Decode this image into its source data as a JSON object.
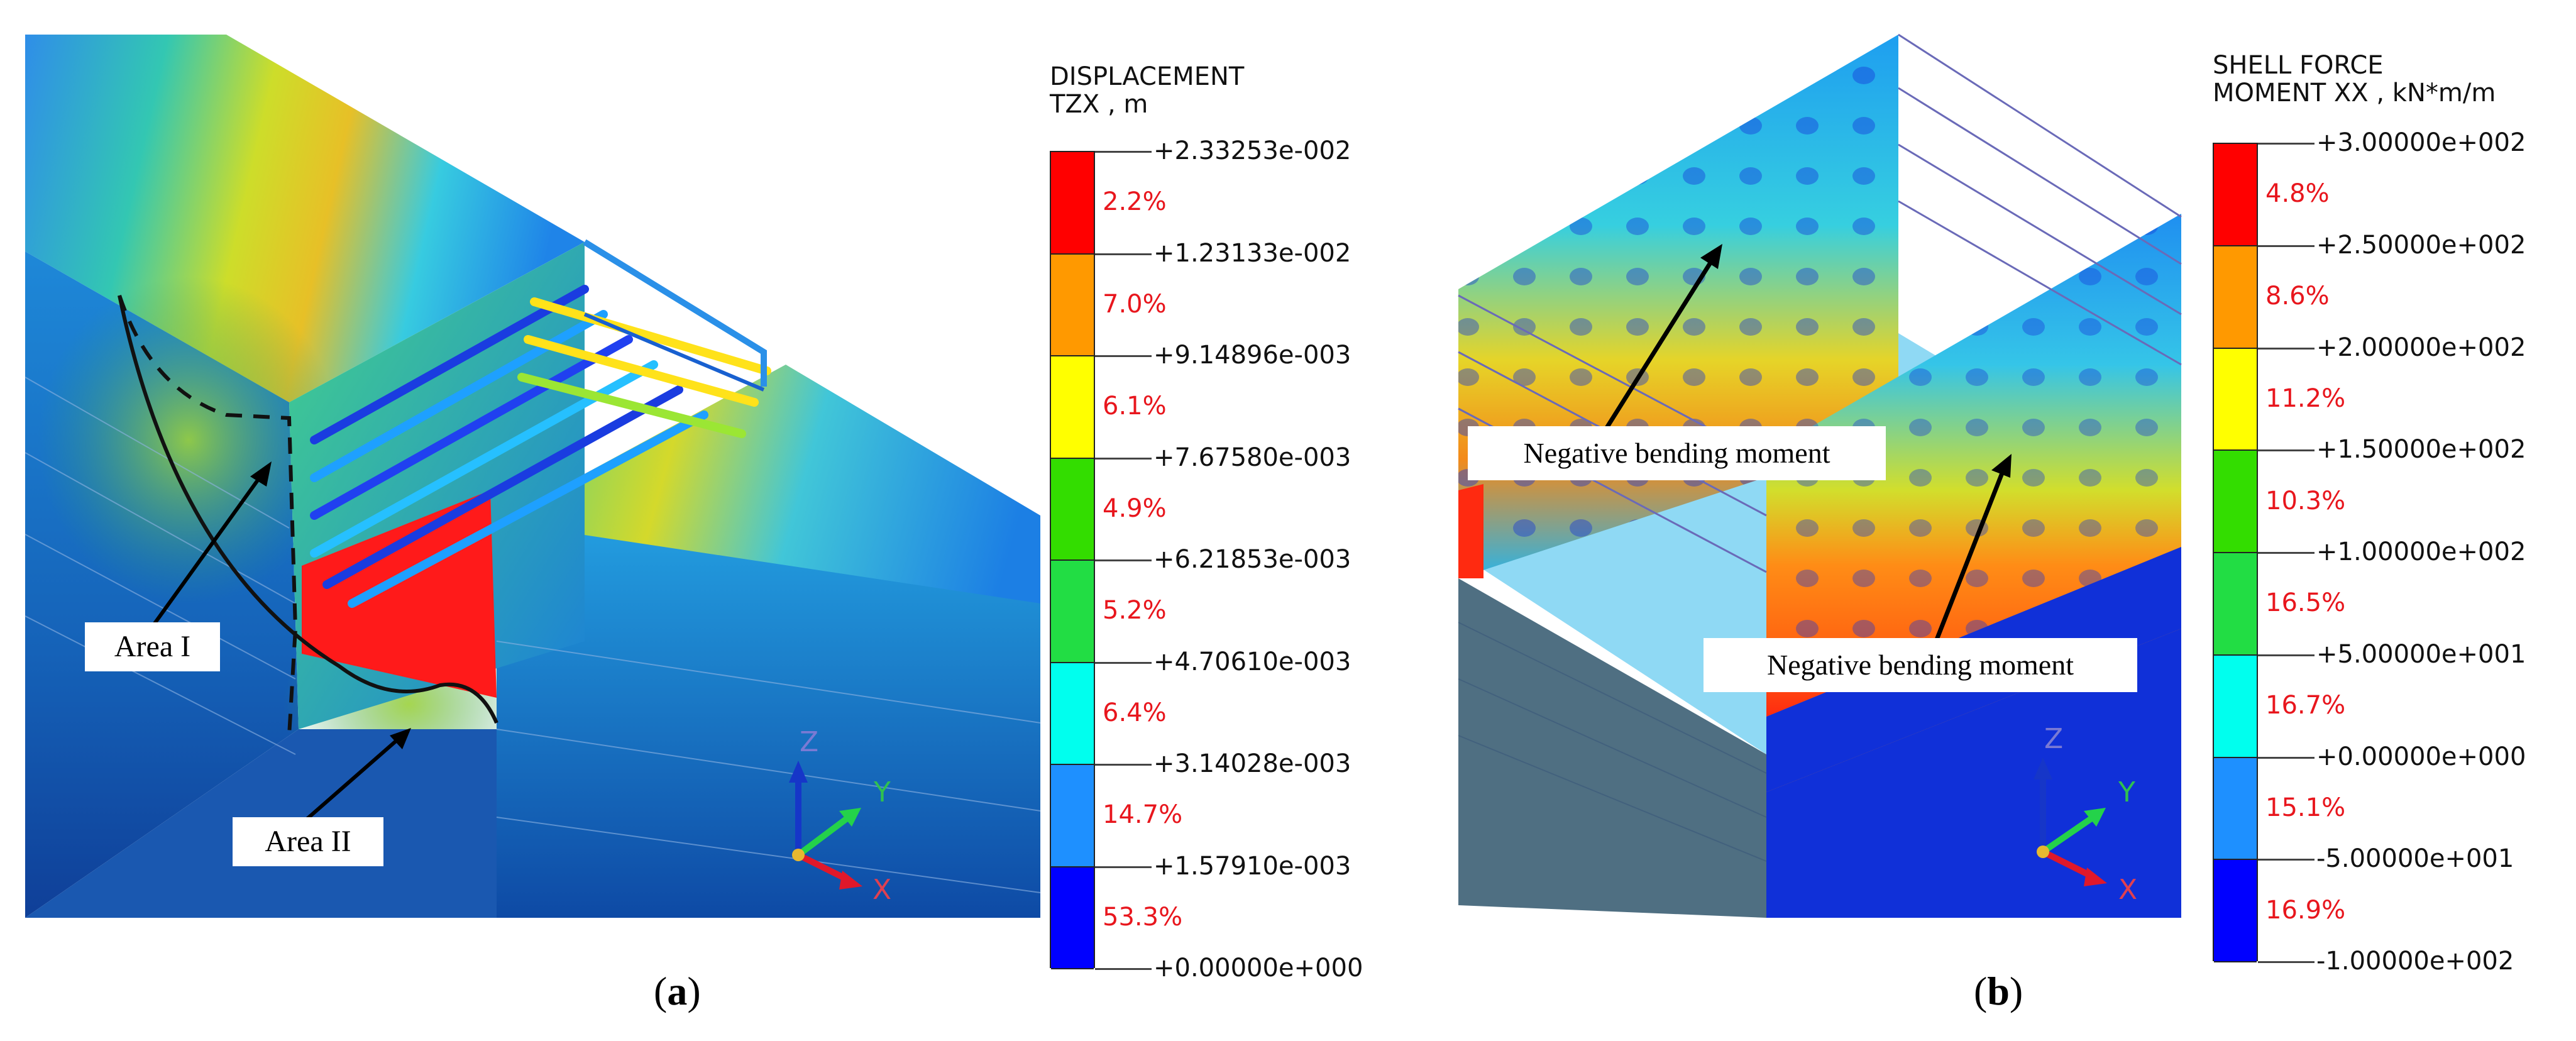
{
  "panel_a": {
    "caption_open": "(",
    "caption_letter": "a",
    "caption_close": ")",
    "callouts": [
      "Area I",
      "Area II"
    ],
    "axis_labels": {
      "z": "Z",
      "y": "Y",
      "x": "X"
    },
    "legend": {
      "title_line1": "DISPLACEMENT",
      "title_line2": "TZX , m",
      "ticks": [
        "+2.33253e-002",
        "+1.23133e-002",
        "+9.14896e-003",
        "+7.67580e-003",
        "+6.21853e-003",
        "+4.70610e-003",
        "+3.14028e-003",
        "+1.57910e-003",
        "+0.00000e+000"
      ],
      "percentages": [
        "2.2%",
        "7.0%",
        "6.1%",
        "4.9%",
        "5.2%",
        "6.4%",
        "14.7%",
        "53.3%"
      ],
      "colors": [
        "#ff0000",
        "#ff9900",
        "#ffff00",
        "#33dd00",
        "#22dd44",
        "#00ffee",
        "#1e90ff",
        "#0000ff"
      ]
    }
  },
  "panel_b": {
    "caption_open": "(",
    "caption_letter": "b",
    "caption_close": ")",
    "callouts": [
      "Negative bending moment",
      "Negative bending moment"
    ],
    "axis_labels": {
      "z": "Z",
      "y": "Y",
      "x": "X"
    },
    "legend": {
      "title_line1": "SHELL FORCE",
      "title_line2": "MOMENT XX , kN*m/m",
      "ticks": [
        "+3.00000e+002",
        "+2.50000e+002",
        "+2.00000e+002",
        "+1.50000e+002",
        "+1.00000e+002",
        "+5.00000e+001",
        "+0.00000e+000",
        "-5.00000e+001",
        "-1.00000e+002"
      ],
      "percentages": [
        "4.8%",
        "8.6%",
        "11.2%",
        "10.3%",
        "16.5%",
        "16.7%",
        "15.1%",
        "16.9%"
      ],
      "colors": [
        "#ff0000",
        "#ff9900",
        "#ffff00",
        "#33dd00",
        "#22dd44",
        "#00ffee",
        "#1e90ff",
        "#0000ff"
      ]
    }
  }
}
